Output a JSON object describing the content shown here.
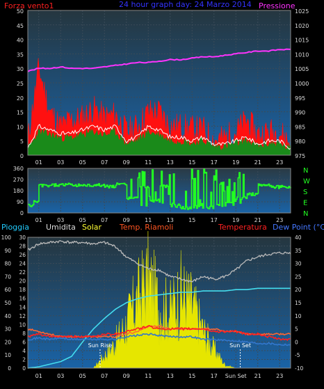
{
  "panel1": {
    "title": "24 hour graph day: 24 Marzo 2014",
    "left_label": "Forza vento1",
    "right_label": "Pressione",
    "colors": {
      "title": "#3333ff",
      "left": "#ff2020",
      "right": "#ff33ff",
      "wind_max": "#ff1010",
      "wind_avg": "#1a8a1a",
      "wind_line": "#ffffff",
      "pressure": "#ff33ff"
    }
  },
  "panel2": {
    "direction_labels": [
      "N",
      "W",
      "S",
      "E",
      "N"
    ],
    "color": "#22ff22"
  },
  "panel3": {
    "labels": {
      "rain": "Pioggia",
      "humidity": "Umidita",
      "solar": "Solar",
      "temp_box": "Temp. Riamoli",
      "temperature": "Temperatura",
      "dewpoint": "Dew Point (°C)"
    },
    "annotations": {
      "sunrise": "Sun Rise",
      "sunset": "Sun Set"
    },
    "colors": {
      "rain": "#22ccff",
      "humidity": "#dddddd",
      "solar": "#ffff33",
      "temp_box": "#ff5522",
      "temperature": "#ff2222",
      "dewpoint": "#4477ff",
      "humidity_line": "#bbbbbb",
      "solar_fill": "#e6e600",
      "rain_line": "#44ddee",
      "temp_line": "#ff2020",
      "temp_box_line": "#ff6633",
      "dew_line": "#3377cc"
    }
  },
  "chart_data": [
    {
      "type": "line",
      "title": "24 hour graph day: 24 Marzo 2014",
      "x_ticks": [
        "01",
        "03",
        "05",
        "07",
        "09",
        "11",
        "13",
        "15",
        "17",
        "19",
        "21",
        "23"
      ],
      "left_axis": {
        "label": "Forza vento1",
        "ticks": [
          0,
          5,
          10,
          15,
          20,
          25,
          30,
          35,
          40,
          45,
          50
        ],
        "range": [
          0,
          50
        ]
      },
      "right_axis": {
        "label": "Pressione",
        "ticks": [
          975,
          980,
          985,
          990,
          995,
          1000,
          1005,
          1010,
          1015,
          1020,
          1025
        ],
        "range": [
          975,
          1025
        ]
      },
      "series": [
        {
          "name": "Pressione",
          "x": [
            0,
            1,
            2,
            3,
            4,
            5,
            6,
            7,
            8,
            9,
            10,
            11,
            12,
            13,
            14,
            15,
            16,
            17,
            18,
            19,
            20,
            21,
            22,
            23,
            24
          ],
          "values": [
            1004,
            1005,
            1005,
            1005.5,
            1005,
            1005,
            1005,
            1005.5,
            1006,
            1006.5,
            1007,
            1007,
            1007.5,
            1008,
            1008,
            1008.5,
            1009,
            1009,
            1009.5,
            1010,
            1010.5,
            1011,
            1011,
            1011.5,
            1011.5
          ]
        },
        {
          "x": [
            0,
            1,
            2,
            3,
            4,
            5,
            6,
            7,
            8,
            9,
            10,
            11,
            12,
            13,
            14,
            15,
            16,
            17,
            18,
            19,
            20,
            21,
            22,
            23,
            24
          ],
          "values": [
            5,
            30,
            15,
            10,
            12,
            13,
            16,
            13,
            14,
            8,
            10,
            15,
            15,
            10,
            10,
            9,
            9,
            5,
            6,
            8,
            12,
            7,
            8,
            8,
            4
          ]
        },
        {
          "x": [
            0,
            1,
            2,
            3,
            4,
            5,
            6,
            7,
            8,
            9,
            10,
            11,
            12,
            13,
            14,
            15,
            16,
            17,
            18,
            19,
            20,
            21,
            22,
            23,
            24
          ],
          "values": [
            2,
            8,
            7,
            6,
            6,
            7,
            8,
            7,
            8,
            4,
            5,
            8,
            7,
            5,
            5,
            4,
            5,
            3,
            3,
            4,
            5,
            3,
            4,
            4,
            2
          ]
        }
      ]
    },
    {
      "type": "line",
      "x_ticks": [
        "01",
        "03",
        "05",
        "07",
        "09",
        "11",
        "13",
        "15",
        "17",
        "19",
        "21",
        "23"
      ],
      "y_axis": {
        "ticks": [
          0,
          90,
          180,
          270,
          360
        ],
        "range": [
          0,
          360
        ]
      },
      "series": [
        {
          "x": [
            0,
            0.5,
            1,
            2,
            3,
            4,
            5,
            6,
            7,
            8,
            9,
            10,
            11,
            12,
            13,
            14,
            15,
            16,
            17,
            18,
            19,
            20,
            21,
            22,
            23,
            24
          ],
          "values": [
            60,
            90,
            220,
            225,
            228,
            225,
            222,
            225,
            215,
            230,
            120,
            210,
            100,
            215,
            60,
            40,
            50,
            45,
            60,
            90,
            120,
            150,
            230,
            210,
            210,
            210
          ]
        }
      ]
    },
    {
      "type": "line",
      "x_ticks": [
        "01",
        "03",
        "05",
        "07",
        "09",
        "11",
        "13",
        "15",
        "17",
        "Sun Set",
        "21",
        "23"
      ],
      "left_axis_1": {
        "label": "Pioggia",
        "ticks": [
          0,
          10,
          20,
          30,
          40,
          50,
          60,
          70,
          80,
          90,
          100
        ],
        "range": [
          0,
          100
        ]
      },
      "left_axis_2": {
        "ticks": [
          0,
          2,
          4,
          6,
          8,
          10,
          12,
          14,
          16,
          18,
          20,
          22,
          24,
          26,
          28,
          30
        ],
        "range": [
          0,
          30
        ]
      },
      "right_axis": {
        "label": "Dew Point (°C)",
        "ticks": [
          -10,
          -5,
          0,
          5,
          10,
          15,
          20,
          25,
          30,
          35,
          40
        ],
        "range": [
          -10,
          40
        ]
      },
      "series": [
        {
          "name": "Umidita",
          "x": [
            0,
            1,
            2,
            3,
            4,
            5,
            6,
            7,
            8,
            9,
            10,
            11,
            12,
            13,
            14,
            15,
            16,
            17,
            18,
            19,
            20,
            21,
            22,
            23,
            24
          ],
          "values": [
            90,
            95,
            96,
            97,
            96,
            96,
            95,
            96,
            93,
            85,
            80,
            76,
            75,
            70,
            68,
            66,
            70,
            68,
            70,
            75,
            82,
            85,
            87,
            88,
            88
          ]
        },
        {
          "name": "Solar",
          "x": [
            0,
            1,
            2,
            3,
            4,
            5,
            6,
            7,
            8,
            9,
            10,
            11,
            12,
            13,
            14,
            15,
            16,
            17,
            18,
            19,
            20,
            21,
            22,
            23,
            24
          ],
          "values": [
            0,
            0,
            0,
            0,
            0,
            0,
            0,
            4,
            8,
            14,
            22,
            28,
            20,
            18,
            24,
            20,
            12,
            6,
            1,
            0,
            0,
            0,
            0,
            0,
            0
          ]
        },
        {
          "name": "Pioggia",
          "x": [
            0,
            1,
            2,
            3,
            4,
            5,
            6,
            7,
            8,
            9,
            10,
            11,
            12,
            13,
            14,
            15,
            16,
            17,
            18,
            19,
            20,
            21,
            22,
            23,
            24
          ],
          "values": [
            0,
            1,
            3,
            5,
            9,
            20,
            30,
            38,
            45,
            50,
            53,
            55,
            56,
            57,
            58,
            58,
            59,
            59,
            59,
            60,
            60,
            61,
            61,
            61,
            61
          ]
        },
        {
          "name": "Temperatura",
          "x": [
            0,
            1,
            2,
            3,
            4,
            5,
            6,
            7,
            8,
            9,
            10,
            11,
            12,
            13,
            14,
            15,
            16,
            17,
            18,
            19,
            20,
            21,
            22,
            23,
            24
          ],
          "values": [
            2,
            3,
            2,
            2,
            2,
            2,
            2,
            3,
            3,
            4,
            5,
            6,
            5,
            5,
            5,
            5,
            5,
            4,
            4,
            4,
            3,
            3,
            2,
            1,
            1
          ]
        },
        {
          "name": "Temp. Riamoli",
          "x": [
            0,
            1,
            2,
            3,
            4,
            5,
            6,
            7,
            8,
            9,
            10,
            11,
            12,
            13,
            14,
            15,
            16,
            17,
            18,
            19,
            20,
            21,
            22,
            23,
            24
          ],
          "values": [
            5,
            4,
            3,
            2,
            2,
            2,
            2,
            2,
            2,
            3,
            4,
            6,
            6,
            5,
            5,
            5,
            5,
            5,
            4,
            4,
            3,
            3,
            3,
            3,
            3
          ]
        },
        {
          "name": "Dew Point (°C)",
          "x": [
            0,
            1,
            2,
            3,
            4,
            5,
            6,
            7,
            8,
            9,
            10,
            11,
            12,
            13,
            14,
            15,
            16,
            17,
            18,
            19,
            20,
            21,
            22,
            23,
            24
          ],
          "values": [
            1,
            1.5,
            1,
            1.5,
            1,
            1,
            1,
            1,
            1,
            2,
            2.5,
            3,
            2.5,
            2,
            2,
            2,
            1,
            1,
            0.5,
            0.5,
            0,
            -0.5,
            -0.5,
            -1,
            -1
          ]
        }
      ],
      "annotations": [
        {
          "text": "Sun Rise",
          "x": 6.6
        },
        {
          "text": "Sun Set",
          "x": 19.4
        }
      ]
    }
  ]
}
